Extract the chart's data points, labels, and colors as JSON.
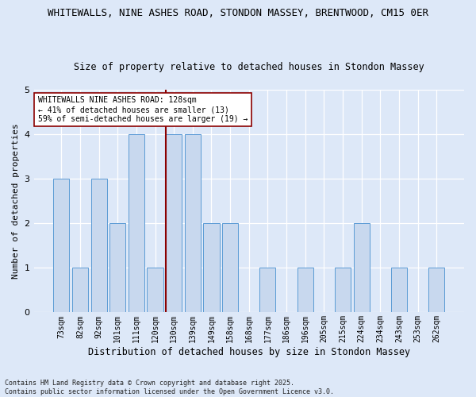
{
  "title_line1": "WHITEWALLS, NINE ASHES ROAD, STONDON MASSEY, BRENTWOOD, CM15 0ER",
  "title_line2": "Size of property relative to detached houses in Stondon Massey",
  "xlabel": "Distribution of detached houses by size in Stondon Massey",
  "ylabel": "Number of detached properties",
  "categories": [
    "73sqm",
    "82sqm",
    "92sqm",
    "101sqm",
    "111sqm",
    "120sqm",
    "130sqm",
    "139sqm",
    "149sqm",
    "158sqm",
    "168sqm",
    "177sqm",
    "186sqm",
    "196sqm",
    "205sqm",
    "215sqm",
    "224sqm",
    "234sqm",
    "243sqm",
    "253sqm",
    "262sqm"
  ],
  "values": [
    3,
    1,
    3,
    2,
    4,
    1,
    4,
    4,
    2,
    2,
    0,
    1,
    0,
    1,
    0,
    1,
    2,
    0,
    1,
    0,
    1
  ],
  "bar_color": "#c8d8ee",
  "bar_edge_color": "#5b9bd5",
  "highlight_index": 6,
  "highlight_line_color": "#8b0000",
  "annotation_text": "WHITEWALLS NINE ASHES ROAD: 128sqm\n← 41% of detached houses are smaller (13)\n59% of semi-detached houses are larger (19) →",
  "annotation_box_color": "#ffffff",
  "annotation_box_edge": "#8b0000",
  "ylim": [
    0,
    5
  ],
  "yticks": [
    0,
    1,
    2,
    3,
    4,
    5
  ],
  "footer_line1": "Contains HM Land Registry data © Crown copyright and database right 2025.",
  "footer_line2": "Contains public sector information licensed under the Open Government Licence v3.0.",
  "bg_color": "#dde8f8",
  "fig_color": "#dde8f8",
  "title_fontsize": 9,
  "subtitle_fontsize": 8.5,
  "axis_label_fontsize": 8,
  "tick_fontsize": 7,
  "annotation_fontsize": 7,
  "footer_fontsize": 6
}
